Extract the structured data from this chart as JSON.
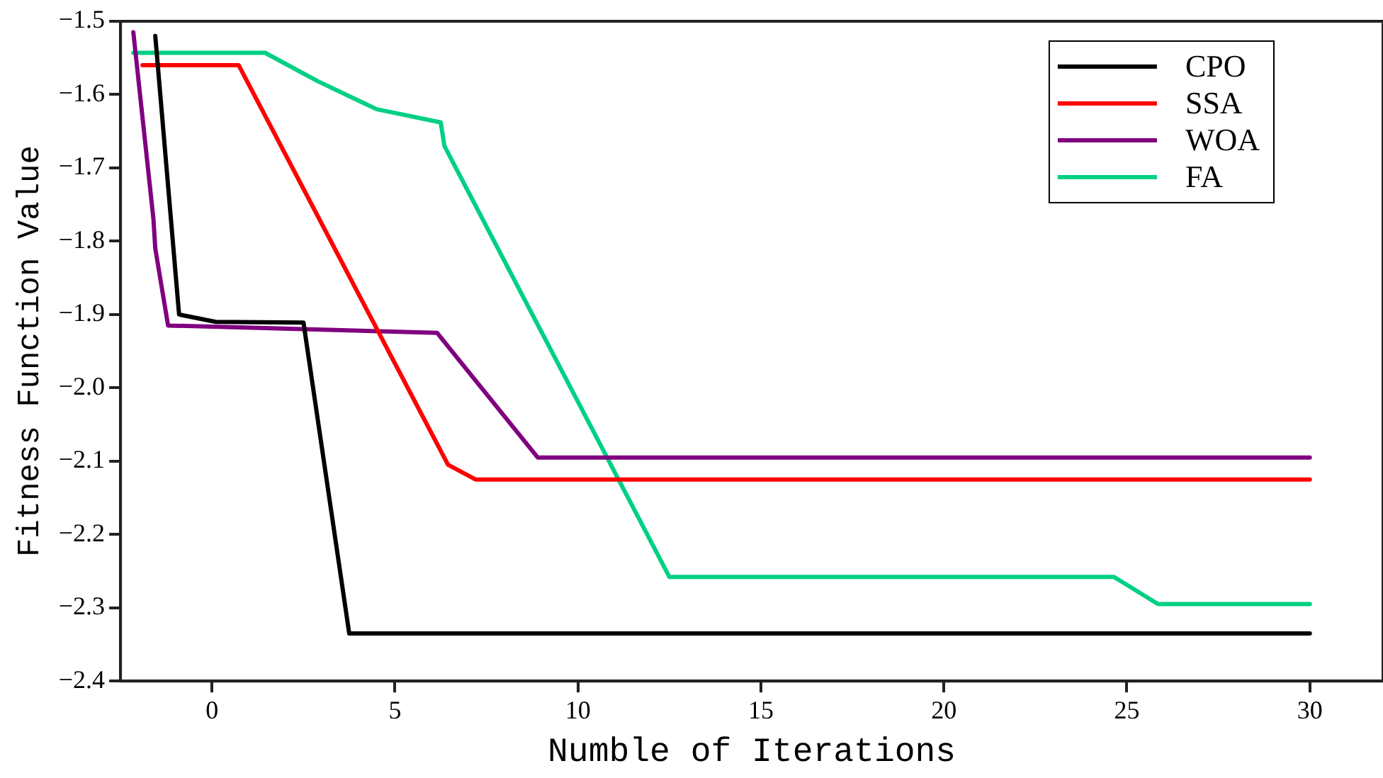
{
  "chart_data": {
    "type": "line",
    "xlabel": "Numble of Iterations",
    "ylabel": "Fitness Function Value",
    "xlim": [
      -2.5,
      32
    ],
    "xticks": [
      0,
      5,
      10,
      15,
      20,
      25,
      30
    ],
    "ylim": [
      -2.4,
      -1.5
    ],
    "yticks": [
      {
        "value": -2.4,
        "label": "−2.4"
      },
      {
        "value": -2.3,
        "label": "−2.3"
      },
      {
        "value": -2.2,
        "label": "−2.2"
      },
      {
        "value": -2.1,
        "label": "−2.1"
      },
      {
        "value": -2.0,
        "label": "−2.0"
      },
      {
        "value": -1.9,
        "label": "−1.9"
      },
      {
        "value": -1.8,
        "label": "−1.8"
      },
      {
        "value": -1.7,
        "label": "−1.7"
      },
      {
        "value": -1.6,
        "label": "−1.6"
      },
      {
        "value": -1.5,
        "label": "−1.5"
      }
    ],
    "grid": false,
    "legend": "top right",
    "marker": "none",
    "line_style": "solid",
    "series": [
      {
        "name": "CPO",
        "color": "#000000",
        "x": [
          -1.55,
          -0.9,
          0.1,
          2.5,
          3.75,
          30
        ],
        "values": [
          -1.52,
          -1.9,
          -1.91,
          -1.911,
          -2.335,
          -2.335
        ]
      },
      {
        "name": "SSA",
        "color": "#ff0000",
        "x": [
          -1.9,
          0.73,
          6.45,
          7.2,
          30
        ],
        "values": [
          -1.56,
          -1.56,
          -2.105,
          -2.125,
          -2.125
        ]
      },
      {
        "name": "WOA",
        "color": "#800080",
        "x": [
          -2.15,
          -1.6,
          -1.55,
          -1.2,
          6.15,
          8.9,
          30
        ],
        "values": [
          -1.515,
          -1.77,
          -1.81,
          -1.915,
          -1.925,
          -2.095,
          -2.095
        ]
      },
      {
        "name": "FA",
        "color": "#00d084",
        "x": [
          -2.15,
          1.45,
          2.9,
          4.5,
          6.25,
          6.35,
          12.5,
          24.65,
          25.85,
          30
        ],
        "values": [
          -1.543,
          -1.543,
          -1.582,
          -1.62,
          -1.638,
          -1.67,
          -2.258,
          -2.258,
          -2.295,
          -2.295
        ]
      }
    ]
  }
}
